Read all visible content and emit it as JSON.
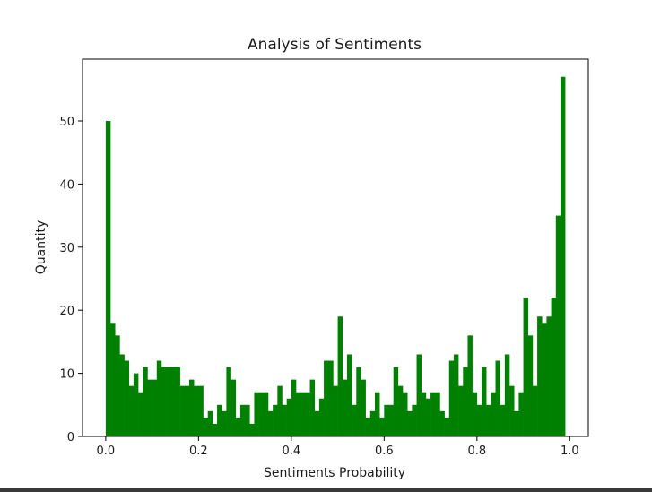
{
  "chart_data": {
    "type": "bar",
    "title": "Analysis of Sentiments",
    "xlabel": "Sentiments Probability",
    "ylabel": "Quantity",
    "xlim": [
      -0.05,
      1.04
    ],
    "ylim": [
      0,
      59.8
    ],
    "x_ticks": [
      0.0,
      0.2,
      0.4,
      0.6,
      0.8,
      1.0
    ],
    "x_tick_labels": [
      "0.0",
      "0.2",
      "0.4",
      "0.6",
      "0.8",
      "1.0"
    ],
    "y_ticks": [
      0,
      10,
      20,
      30,
      40,
      50
    ],
    "y_tick_labels": [
      "0",
      "10",
      "20",
      "30",
      "40",
      "50"
    ],
    "bar_color": "#008000",
    "grid": false,
    "bin_start": 0.0,
    "bin_end": 0.99,
    "counts": [
      50,
      18,
      16,
      13,
      12,
      8,
      10,
      7,
      11,
      9,
      9,
      12,
      11,
      11,
      11,
      11,
      8,
      8,
      9,
      8,
      8,
      3,
      4,
      2,
      5,
      4,
      11,
      9,
      3,
      5,
      5,
      2,
      7,
      7,
      7,
      4,
      5,
      8,
      5,
      6,
      9,
      7,
      7,
      7,
      9,
      4,
      6,
      12,
      12,
      8,
      19,
      9,
      13,
      5,
      11,
      9,
      3,
      4,
      7,
      3,
      5,
      5,
      11,
      8,
      7,
      4,
      5,
      13,
      7,
      6,
      7,
      7,
      4,
      3,
      12,
      13,
      8,
      11,
      16,
      7,
      5,
      11,
      5,
      7,
      12,
      5,
      13,
      8,
      4,
      7,
      22,
      16,
      8,
      19,
      18,
      19,
      22,
      35,
      57
    ]
  }
}
